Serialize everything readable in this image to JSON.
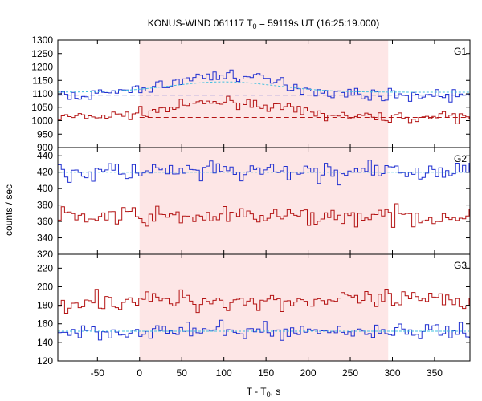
{
  "chart_data": {
    "type": "line",
    "title": "KONUS-WIND 061117 T",
    "title_sub": "0",
    "title_rest": " = 59119s UT (16:25:19.000)",
    "xlabel": "T - T",
    "xlabel_sub": "0",
    "xlabel_rest": ", s",
    "ylabel": "counts / sec",
    "xlim": [
      -97,
      392
    ],
    "x_ticks": [
      -50,
      0,
      50,
      100,
      150,
      200,
      250,
      300,
      350
    ],
    "highlight_interval": [
      0,
      295
    ],
    "colors": {
      "blue": "#1f2fd0",
      "red": "#b41414",
      "fit": "#40c0e0",
      "highlight": "#fde6e6"
    },
    "panels": [
      {
        "label": "G1",
        "ylim": [
          900,
          1300
        ],
        "y_ticks": [
          900,
          950,
          1000,
          1050,
          1100,
          1150,
          1200,
          1250,
          1300
        ],
        "background": {
          "blue": 1095,
          "red": 1012
        },
        "fit_level": 1106,
        "fit_peak": 1170,
        "red_peak": 1070,
        "blue_noise": 15,
        "red_noise": 13
      },
      {
        "label": "G2",
        "ylim": [
          320,
          450
        ],
        "y_ticks": [
          320,
          340,
          360,
          380,
          400,
          420,
          440
        ],
        "background": {
          "blue": 420,
          "red": 366
        },
        "fit_level": 420,
        "fit_peak": 0,
        "red_peak": 0,
        "blue_noise": 9,
        "red_noise": 8
      },
      {
        "label": "G3",
        "ylim": [
          120,
          235
        ],
        "y_ticks": [
          120,
          140,
          160,
          180,
          200,
          220
        ],
        "background": {
          "blue": 152,
          "red": 185
        },
        "fit_level": 152,
        "fit_peak": 0,
        "red_peak": 0,
        "blue_noise": 6,
        "red_noise": 8
      }
    ]
  }
}
